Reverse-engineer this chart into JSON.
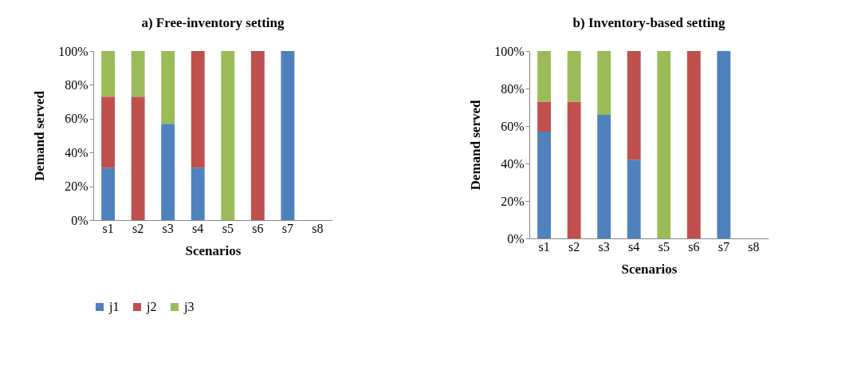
{
  "chart_data": [
    {
      "type": "bar",
      "title": "a) Free-inventory setting",
      "xlabel": "Scenarios",
      "ylabel": "Demand served",
      "categories": [
        "s1",
        "s2",
        "s3",
        "s4",
        "s5",
        "s6",
        "s7",
        "s8"
      ],
      "stacked": true,
      "legend": "bottom",
      "ylim": [
        0,
        100
      ],
      "yticks": [
        {
          "value": 0,
          "label": "0%"
        },
        {
          "value": 20,
          "label": "20%"
        },
        {
          "value": 40,
          "label": "40%"
        },
        {
          "value": 60,
          "label": "60%"
        },
        {
          "value": 80,
          "label": "80%"
        },
        {
          "value": 100,
          "label": "100%"
        }
      ],
      "series": [
        {
          "name": "j1",
          "color": "#4f81bd",
          "values": [
            31,
            null,
            57,
            31,
            null,
            null,
            100,
            null
          ]
        },
        {
          "name": "j2",
          "color": "#c0504d",
          "values": [
            42,
            73,
            null,
            69,
            null,
            100,
            null,
            null
          ]
        },
        {
          "name": "j3",
          "color": "#9bbb59",
          "values": [
            27,
            27,
            43,
            null,
            100,
            null,
            null,
            null
          ]
        }
      ]
    },
    {
      "type": "bar",
      "title": "b) Inventory-based setting",
      "xlabel": "Scenarios",
      "ylabel": "Demand served",
      "categories": [
        "s1",
        "s2",
        "s3",
        "s4",
        "s5",
        "s6",
        "s7",
        "s8"
      ],
      "stacked": true,
      "legend": "bottom",
      "ylim": [
        0,
        100
      ],
      "yticks": [
        {
          "value": 0,
          "label": "0%"
        },
        {
          "value": 20,
          "label": "20%"
        },
        {
          "value": 40,
          "label": "40%"
        },
        {
          "value": 60,
          "label": "60%"
        },
        {
          "value": 80,
          "label": "80%"
        },
        {
          "value": 100,
          "label": "100%"
        }
      ],
      "series": [
        {
          "name": "j1",
          "color": "#4f81bd",
          "values": [
            57,
            null,
            66,
            42,
            null,
            null,
            100,
            null
          ]
        },
        {
          "name": "j2",
          "color": "#c0504d",
          "values": [
            16,
            73,
            null,
            58,
            null,
            100,
            null,
            null
          ]
        },
        {
          "name": "j3",
          "color": "#9bbb59",
          "values": [
            27,
            27,
            34,
            null,
            100,
            null,
            null,
            null
          ]
        }
      ]
    }
  ]
}
